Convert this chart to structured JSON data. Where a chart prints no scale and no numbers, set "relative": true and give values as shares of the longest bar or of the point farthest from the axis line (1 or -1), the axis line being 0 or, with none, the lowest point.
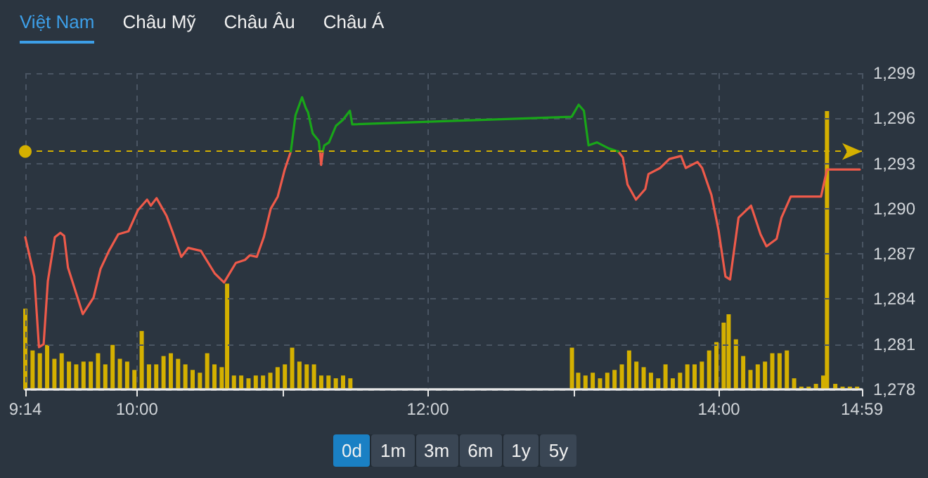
{
  "chart_data": [
    {
      "type": "line",
      "annotations": [
        "Việt Nam",
        "Châu Mỹ",
        "Châu Âu",
        "Châu Á"
      ],
      "xlim": [
        9.233,
        14.983
      ],
      "xticks": [
        {
          "value": 9.233,
          "label": "9:14"
        },
        {
          "value": 10,
          "label": "10:00"
        },
        {
          "value": 12,
          "label": "12:00"
        },
        {
          "value": 14,
          "label": "14:00"
        },
        {
          "value": 14.983,
          "label": "14:59"
        }
      ],
      "ylim": [
        1278,
        1299
      ],
      "yticks": [
        {
          "value": 1278,
          "label": "1,278"
        },
        {
          "value": 1281,
          "label": "1,281"
        },
        {
          "value": 1284,
          "label": "1,284"
        },
        {
          "value": 1287,
          "label": "1,287"
        },
        {
          "value": 1290,
          "label": "1,290"
        },
        {
          "value": 1293,
          "label": "1,293"
        },
        {
          "value": 1296,
          "label": "1,296"
        },
        {
          "value": 1299,
          "label": "1,299"
        }
      ],
      "grid": true,
      "marker": "none",
      "line_style": "solid",
      "ref_lines": [
        {
          "axis": "y",
          "value": 1293.8,
          "color": "#d4b000",
          "line_style": "dashed"
        }
      ],
      "series": [
        {
          "color": "#ee5a4a",
          "x": [
            9.233,
            9.295,
            9.327,
            9.359,
            9.388,
            9.436,
            9.474,
            9.5,
            9.526,
            9.628,
            9.702,
            9.75,
            9.808,
            9.872,
            9.942,
            10.007,
            10.07,
            10.096,
            10.135,
            10.205,
            10.247,
            10.305,
            10.353,
            10.44,
            10.535,
            10.599,
            10.68,
            10.743,
            10.776,
            10.824,
            10.872,
            10.92,
            10.968,
            11.016,
            11.058,
            11.16,
            11.258,
            11.266,
            11.278,
            12.0,
            13.308,
            13.34,
            13.372,
            13.43,
            13.494,
            13.516,
            13.596,
            13.66,
            13.74,
            13.772,
            13.853,
            13.885,
            13.949,
            13.997,
            14.045,
            14.077,
            14.135,
            14.221,
            14.286,
            14.327,
            14.397,
            14.43,
            14.494,
            14.702,
            14.743,
            14.968
          ],
          "values": [
            1288.1,
            1285.5,
            1280.8,
            1281.0,
            1285.2,
            1288.1,
            1288.4,
            1288.2,
            1286.1,
            1283.0,
            1284.1,
            1286.0,
            1287.2,
            1288.3,
            1288.5,
            1289.9,
            1290.6,
            1290.2,
            1290.7,
            1289.5,
            1288.4,
            1286.8,
            1287.4,
            1287.2,
            1285.7,
            1285.1,
            1286.4,
            1286.6,
            1286.9,
            1286.8,
            1288.1,
            1290.0,
            1290.8,
            1292.6,
            1293.8,
            null,
            1293.8,
            1292.9,
            1293.8,
            null,
            1293.8,
            1293.4,
            1291.6,
            1290.6,
            1291.3,
            1292.3,
            1292.7,
            1293.3,
            1293.5,
            1292.7,
            1293.1,
            1292.7,
            1290.9,
            1288.6,
            1285.5,
            1285.3,
            1289.4,
            1290.2,
            1288.3,
            1287.5,
            1288.0,
            1289.4,
            1290.8,
            1290.8,
            1292.6,
            1292.6
          ]
        },
        {
          "color": "#19a619",
          "x": [
            11.058,
            11.09,
            11.135,
            11.16,
            11.176,
            11.208,
            11.25,
            11.258,
            11.266,
            11.278,
            11.288,
            11.32,
            11.368,
            11.416,
            11.464,
            11.48,
            12.988,
            13.036,
            13.072,
            13.104,
            13.163,
            13.243,
            13.308
          ],
          "values": [
            1293.8,
            1296.2,
            1297.4,
            1296.7,
            1296.4,
            1295.0,
            1294.5,
            1293.8,
            null,
            1293.8,
            1294.2,
            1294.4,
            1295.5,
            1295.9,
            1296.5,
            1295.6,
            1296.1,
            1296.9,
            1296.5,
            1294.2,
            1294.4,
            1294.0,
            1293.8
          ]
        }
      ]
    },
    {
      "type": "bar",
      "relative": true,
      "color": "#d4b000",
      "annotations": [
        "0d",
        "1m",
        "3m",
        "6m",
        "1y",
        "5y"
      ],
      "xlim": [
        9.233,
        14.983
      ],
      "x": [
        9.233,
        9.283,
        9.333,
        9.383,
        9.433,
        9.483,
        9.533,
        9.583,
        9.633,
        9.683,
        9.733,
        9.783,
        9.833,
        9.883,
        9.933,
        9.983,
        10.033,
        10.083,
        10.133,
        10.183,
        10.233,
        10.283,
        10.333,
        10.383,
        10.433,
        10.483,
        10.533,
        10.583,
        10.62,
        10.667,
        10.717,
        10.767,
        10.817,
        10.867,
        10.917,
        10.967,
        11.017,
        11.067,
        11.117,
        11.167,
        11.217,
        11.267,
        11.317,
        11.367,
        11.417,
        11.467,
        12.99,
        13.033,
        13.083,
        13.133,
        13.183,
        13.233,
        13.283,
        13.333,
        13.383,
        13.433,
        13.483,
        13.533,
        13.583,
        13.633,
        13.683,
        13.733,
        13.783,
        13.833,
        13.883,
        13.933,
        13.983,
        14.033,
        14.067,
        14.117,
        14.167,
        14.217,
        14.267,
        14.317,
        14.367,
        14.417,
        14.467,
        14.517,
        14.567,
        14.617,
        14.667,
        14.717,
        14.743,
        14.8,
        14.85,
        14.9,
        14.95
      ],
      "values": [
        0.29,
        0.14,
        0.13,
        0.16,
        0.11,
        0.13,
        0.1,
        0.09,
        0.1,
        0.1,
        0.13,
        0.09,
        0.16,
        0.11,
        0.1,
        0.07,
        0.21,
        0.09,
        0.09,
        0.12,
        0.13,
        0.11,
        0.09,
        0.07,
        0.06,
        0.13,
        0.09,
        0.08,
        0.38,
        0.05,
        0.05,
        0.04,
        0.05,
        0.05,
        0.06,
        0.08,
        0.09,
        0.15,
        0.1,
        0.09,
        0.09,
        0.05,
        0.05,
        0.04,
        0.05,
        0.04,
        0.15,
        0.06,
        0.05,
        0.06,
        0.04,
        0.06,
        0.07,
        0.09,
        0.14,
        0.1,
        0.08,
        0.06,
        0.04,
        0.09,
        0.04,
        0.06,
        0.09,
        0.09,
        0.1,
        0.14,
        0.17,
        0.24,
        0.27,
        0.18,
        0.12,
        0.07,
        0.09,
        0.1,
        0.13,
        0.13,
        0.14,
        0.04,
        0.01,
        0.01,
        0.02,
        0.05,
        1,
        0.02,
        0.01,
        0.01,
        0.01
      ]
    }
  ]
}
